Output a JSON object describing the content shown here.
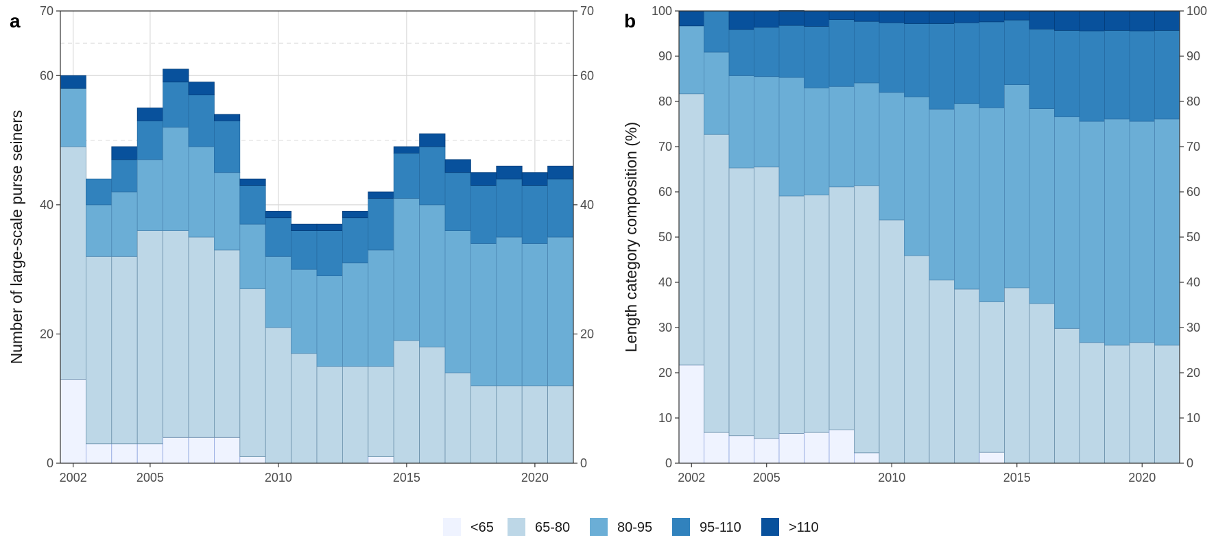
{
  "legend": {
    "categories": [
      "<65",
      "65-80",
      "80-95",
      "95-110",
      ">110"
    ],
    "colors": [
      "#eff3ff",
      "#bdd7e7",
      "#6baed6",
      "#3182bd",
      "#08519c"
    ]
  },
  "chart_data": [
    {
      "panel_label": "a",
      "type": "bar",
      "stacked": true,
      "ylabel": "Number of large-scale purse seiners",
      "xlabel": "",
      "ylim": [
        0,
        70
      ],
      "yticks": [
        0,
        20,
        40,
        60,
        70
      ],
      "y_right_axis": true,
      "x_ticks": [
        2002,
        2005,
        2010,
        2015,
        2020
      ],
      "grid": true,
      "categories": [
        2002,
        2003,
        2004,
        2005,
        2006,
        2007,
        2008,
        2009,
        2010,
        2011,
        2012,
        2013,
        2014,
        2015,
        2016,
        2017,
        2018,
        2019,
        2020,
        2021
      ],
      "series": [
        {
          "name": "<65",
          "values": [
            13,
            3,
            3,
            3,
            4,
            4,
            4,
            1,
            0,
            0,
            0,
            0,
            1,
            0,
            0,
            0,
            0,
            0,
            0,
            0
          ]
        },
        {
          "name": "65-80",
          "values": [
            36,
            29,
            29,
            33,
            32,
            31,
            29,
            26,
            21,
            17,
            15,
            15,
            14,
            19,
            18,
            14,
            12,
            12,
            12,
            12
          ]
        },
        {
          "name": "80-95",
          "values": [
            9,
            8,
            10,
            11,
            16,
            14,
            12,
            10,
            11,
            13,
            14,
            16,
            18,
            22,
            22,
            22,
            22,
            23,
            22,
            23
          ]
        },
        {
          "name": "95-110",
          "values": [
            0,
            4,
            5,
            6,
            7,
            8,
            8,
            6,
            6,
            6,
            7,
            7,
            8,
            7,
            9,
            9,
            9,
            9,
            9,
            9
          ]
        },
        {
          "name": ">110",
          "values": [
            2,
            0,
            2,
            2,
            2,
            2,
            1,
            1,
            1,
            1,
            1,
            1,
            1,
            1,
            2,
            2,
            2,
            2,
            2,
            2
          ]
        }
      ]
    },
    {
      "panel_label": "b",
      "type": "bar",
      "stacked": true,
      "ylabel": "Length category composition (%)",
      "xlabel": "",
      "ylim": [
        0,
        100
      ],
      "yticks": [
        0,
        10,
        20,
        30,
        40,
        50,
        60,
        70,
        80,
        90,
        100
      ],
      "y_right_axis": true,
      "x_ticks": [
        2002,
        2005,
        2010,
        2015,
        2020
      ],
      "grid": false,
      "categories": [
        2002,
        2003,
        2004,
        2005,
        2006,
        2007,
        2008,
        2009,
        2010,
        2011,
        2012,
        2013,
        2014,
        2015,
        2016,
        2017,
        2018,
        2019,
        2020,
        2021
      ],
      "series": [
        {
          "name": "<65",
          "values": [
            21.7,
            6.8,
            6.1,
            5.5,
            6.6,
            6.8,
            7.4,
            2.3,
            0,
            0,
            0,
            0,
            2.4,
            0,
            0,
            0,
            0,
            0,
            0,
            0
          ]
        },
        {
          "name": "65-80",
          "values": [
            60.0,
            65.9,
            59.2,
            60.0,
            52.5,
            52.5,
            53.7,
            59.1,
            53.8,
            45.9,
            40.5,
            38.5,
            33.3,
            38.8,
            35.3,
            29.8,
            26.7,
            26.1,
            26.7,
            26.1
          ]
        },
        {
          "name": "80-95",
          "values": [
            15.0,
            18.2,
            20.4,
            20.0,
            26.2,
            23.7,
            22.2,
            22.7,
            28.2,
            35.1,
            37.8,
            41.0,
            42.9,
            44.9,
            43.1,
            46.8,
            48.9,
            50.0,
            48.9,
            50.0
          ]
        },
        {
          "name": "95-110",
          "values": [
            0,
            9.1,
            10.2,
            10.9,
            11.5,
            13.6,
            14.8,
            13.6,
            15.4,
            16.2,
            18.9,
            17.9,
            19.0,
            14.3,
            17.6,
            19.1,
            20.0,
            19.6,
            20.0,
            19.6
          ]
        },
        {
          "name": ">110",
          "values": [
            3.3,
            0,
            4.1,
            3.6,
            3.3,
            3.4,
            1.9,
            2.3,
            2.6,
            2.7,
            2.7,
            2.6,
            2.4,
            2.0,
            3.9,
            4.3,
            4.4,
            4.3,
            4.4,
            4.3
          ]
        }
      ]
    }
  ]
}
